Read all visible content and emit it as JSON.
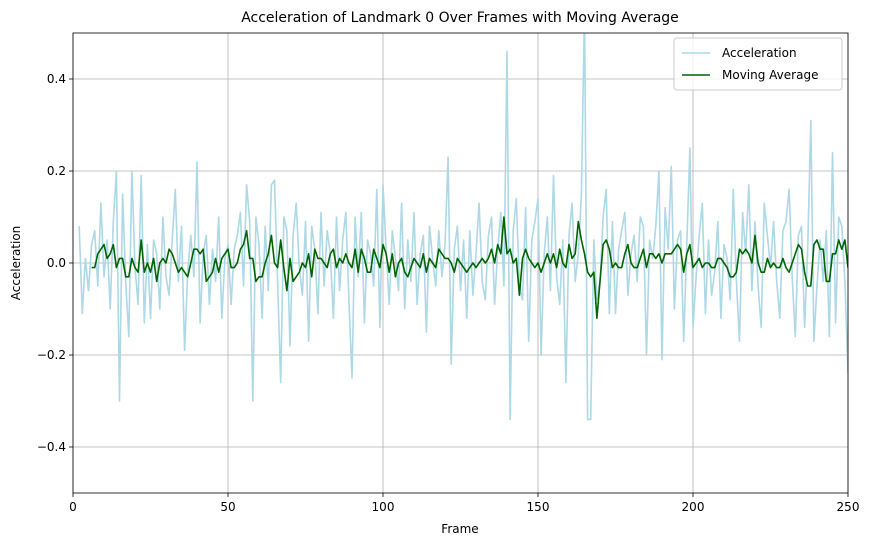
{
  "chart_data": {
    "type": "line",
    "title": "Acceleration of Landmark 0 Over Frames with Moving Average",
    "x_label": "Frame",
    "y_label": "Acceleration",
    "xlim": [
      0,
      250
    ],
    "ylim": [
      -0.5,
      0.5
    ],
    "xticks": [
      0,
      50,
      100,
      150,
      200,
      250
    ],
    "yticks": [
      {
        "value": -0.4,
        "label": "−0.4"
      },
      {
        "value": -0.2,
        "label": "−0.2"
      },
      {
        "value": 0,
        "label": "0.0"
      },
      0.2,
      0.4
    ],
    "grid": true,
    "legend": "upper right",
    "x": [
      2,
      3,
      4,
      5,
      6,
      7,
      8,
      9,
      10,
      11,
      12,
      13,
      14,
      15,
      16,
      17,
      18,
      19,
      20,
      21,
      22,
      23,
      24,
      25,
      26,
      27,
      28,
      29,
      30,
      31,
      32,
      33,
      34,
      35,
      36,
      37,
      38,
      39,
      40,
      41,
      42,
      43,
      44,
      45,
      46,
      47,
      48,
      49,
      50,
      51,
      52,
      53,
      54,
      55,
      56,
      57,
      58,
      59,
      60,
      61,
      62,
      63,
      64,
      65,
      66,
      67,
      68,
      69,
      70,
      71,
      72,
      73,
      74,
      75,
      76,
      77,
      78,
      79,
      80,
      81,
      82,
      83,
      84,
      85,
      86,
      87,
      88,
      89,
      90,
      91,
      92,
      93,
      94,
      95,
      96,
      97,
      98,
      99,
      100,
      101,
      102,
      103,
      104,
      105,
      106,
      107,
      108,
      109,
      110,
      111,
      112,
      113,
      114,
      115,
      116,
      117,
      118,
      119,
      120,
      121,
      122,
      123,
      124,
      125,
      126,
      127,
      128,
      129,
      130,
      131,
      132,
      133,
      134,
      135,
      136,
      137,
      138,
      139,
      140,
      141,
      142,
      143,
      144,
      145,
      146,
      147,
      148,
      149,
      150,
      151,
      152,
      153,
      154,
      155,
      156,
      157,
      158,
      159,
      160,
      161,
      162,
      163,
      164,
      165,
      166,
      167,
      168,
      169,
      170,
      171,
      172,
      173,
      174,
      175,
      176,
      177,
      178,
      179,
      180,
      181,
      182,
      183,
      184,
      185,
      186,
      187,
      188,
      189,
      190,
      191,
      192,
      193,
      194,
      195,
      196,
      197,
      198,
      199,
      200,
      201,
      202,
      203,
      204,
      205,
      206,
      207,
      208,
      209,
      210,
      211,
      212,
      213,
      214,
      215,
      216,
      217,
      218,
      219,
      220,
      221,
      222,
      223,
      224,
      225,
      226,
      227,
      228,
      229,
      230,
      231,
      232,
      233,
      234,
      235,
      236,
      237,
      238,
      239,
      240,
      241,
      242,
      243,
      244,
      245,
      246,
      247,
      248,
      249,
      250
    ],
    "series": [
      {
        "name": "Acceleration",
        "color": "#add8e6",
        "values": [
          0.08,
          -0.11,
          0.01,
          -0.06,
          0.04,
          0.07,
          -0.05,
          0.13,
          -0.03,
          0.05,
          -0.1,
          0.09,
          0.2,
          -0.3,
          0.15,
          -0.04,
          -0.16,
          0.2,
          -0.01,
          -0.09,
          0.19,
          -0.13,
          0.04,
          -0.12,
          0.05,
          0.02,
          -0.1,
          0.1,
          -0.03,
          -0.07,
          0.05,
          0.16,
          -0.04,
          0.08,
          -0.19,
          -0.02,
          0.06,
          -0.03,
          0.22,
          -0.13,
          0.02,
          0.06,
          -0.09,
          0.03,
          -0.04,
          0.1,
          -0.12,
          0.01,
          0.04,
          -0.09,
          0.03,
          0.06,
          0.11,
          -0.05,
          0.17,
          0.09,
          -0.3,
          0.1,
          0.04,
          -0.12,
          0.08,
          -0.06,
          0.17,
          0.18,
          -0.04,
          -0.26,
          0.1,
          0.07,
          -0.18,
          0.06,
          0.13,
          -0.01,
          -0.07,
          0.09,
          -0.17,
          0.08,
          0.03,
          -0.11,
          0.11,
          -0.05,
          0.07,
          0.02,
          -0.12,
          0.1,
          -0.06,
          0.05,
          0.11,
          -0.08,
          -0.25,
          0.1,
          -0.03,
          0.11,
          -0.13,
          0.05,
          0.02,
          -0.05,
          0.16,
          -0.14,
          0.17,
          0.03,
          -0.09,
          0.07,
          0.01,
          -0.06,
          0.13,
          -0.1,
          0.05,
          -0.04,
          0.11,
          -0.09,
          0.02,
          0.06,
          -0.15,
          0.08,
          0.01,
          -0.05,
          0.07,
          -0.03,
          0.04,
          0.23,
          -0.22,
          0.03,
          0.08,
          -0.06,
          0.05,
          -0.12,
          0.07,
          -0.07,
          0.02,
          0.13,
          -0.04,
          -0.08,
          0.06,
          0.1,
          -0.09,
          0.03,
          0.11,
          -0.05,
          0.46,
          -0.34,
          0.07,
          0.14,
          -0.05,
          -0.08,
          0.12,
          -0.17,
          0.05,
          0.09,
          0.14,
          -0.2,
          0.02,
          0.1,
          -0.06,
          0.19,
          -0.03,
          -0.09,
          0.05,
          -0.26,
          0.06,
          0.13,
          -0.04,
          0.02,
          0.15,
          0.55,
          -0.34,
          -0.34,
          0.05,
          -0.08,
          -0.04,
          0.1,
          0.16,
          -0.11,
          0.09,
          -0.11,
          0.03,
          0.07,
          0.11,
          -0.07,
          0.02,
          0.06,
          -0.04,
          0.1,
          0.08,
          -0.2,
          0.05,
          0.01,
          0.08,
          0.2,
          -0.21,
          0.12,
          0.03,
          0.21,
          -0.1,
          0.05,
          0.07,
          -0.17,
          0.04,
          0.25,
          -0.14,
          -0.03,
          0.06,
          0.13,
          -0.11,
          0.05,
          -0.07,
          -0.02,
          0.09,
          -0.12,
          0.04,
          0.01,
          -0.08,
          0.16,
          -0.04,
          -0.17,
          0.11,
          0.02,
          0.17,
          -0.06,
          0.09,
          -0.05,
          -0.14,
          0.13,
          0.06,
          -0.01,
          0.09,
          -0.04,
          -0.12,
          0.07,
          0.09,
          0.16,
          -0.03,
          -0.16,
          0.06,
          0.08,
          -0.14,
          0.03,
          0.31,
          -0.17,
          -0.05,
          0.05,
          -0.04,
          0.07,
          -0.16,
          0.24,
          -0.13,
          0.1,
          0.08,
          -0.04,
          -0.24
        ]
      },
      {
        "name": "Moving Average",
        "color": "#006400",
        "values": [
          null,
          null,
          null,
          null,
          -0.01,
          -0.01,
          0.02,
          0.03,
          0.04,
          0.01,
          0.02,
          0.04,
          -0.01,
          0.01,
          0.01,
          -0.03,
          -0.03,
          0.01,
          -0.01,
          -0.02,
          0.05,
          -0.02,
          0.0,
          -0.02,
          0.01,
          -0.04,
          0.0,
          0.01,
          0.0,
          0.03,
          0.02,
          0.0,
          -0.02,
          -0.01,
          -0.02,
          -0.03,
          0.0,
          0.03,
          0.03,
          0.02,
          0.03,
          -0.04,
          -0.03,
          -0.02,
          0.01,
          -0.02,
          0.01,
          0.02,
          0.03,
          -0.01,
          -0.01,
          0.0,
          0.03,
          0.04,
          0.07,
          0.01,
          0.01,
          -0.04,
          -0.03,
          -0.03,
          0.0,
          0.02,
          0.06,
          0.0,
          -0.01,
          0.05,
          -0.01,
          -0.06,
          0.01,
          -0.04,
          -0.03,
          -0.02,
          0.0,
          -0.01,
          0.02,
          -0.03,
          0.03,
          0.01,
          0.01,
          0.0,
          -0.01,
          0.02,
          0.03,
          -0.01,
          0.01,
          0.0,
          0.02,
          0.0,
          -0.01,
          0.03,
          -0.02,
          0.03,
          0.01,
          -0.02,
          -0.02,
          0.03,
          0.01,
          -0.01,
          0.04,
          0.02,
          -0.02,
          0.02,
          -0.03,
          0.0,
          0.01,
          -0.02,
          -0.03,
          -0.01,
          0.01,
          0.0,
          -0.01,
          0.02,
          -0.02,
          0.01,
          0.0,
          -0.01,
          0.03,
          0.02,
          0.01,
          0.01,
          0.0,
          -0.02,
          0.01,
          0.0,
          -0.01,
          -0.02,
          -0.01,
          0.0,
          -0.01,
          0.0,
          0.01,
          0.0,
          0.01,
          0.03,
          0.0,
          0.04,
          0.02,
          0.1,
          0.02,
          0.03,
          0.0,
          0.01,
          -0.07,
          0.01,
          0.03,
          0.01,
          0.0,
          -0.01,
          0.0,
          -0.02,
          0.0,
          0.02,
          0.0,
          0.02,
          -0.01,
          0.03,
          0.0,
          -0.01,
          0.04,
          0.01,
          0.02,
          0.09,
          0.05,
          0.02,
          -0.02,
          -0.03,
          -0.02,
          -0.12,
          -0.04,
          0.04,
          0.05,
          0.03,
          -0.01,
          0.0,
          -0.01,
          -0.01,
          0.02,
          0.04,
          0.0,
          -0.01,
          -0.01,
          0.01,
          0.03,
          -0.01,
          0.02,
          0.02,
          0.01,
          0.02,
          0.0,
          0.02,
          0.02,
          0.02,
          0.03,
          0.04,
          0.03,
          -0.02,
          0.02,
          0.04,
          -0.01,
          0.0,
          0.01,
          -0.01,
          0.0,
          0.0,
          -0.01,
          -0.01,
          0.01,
          0.01,
          0.0,
          -0.01,
          -0.03,
          -0.03,
          -0.02,
          0.03,
          0.02,
          0.03,
          0.02,
          0.0,
          0.06,
          0.0,
          -0.02,
          -0.02,
          0.01,
          -0.01,
          0.0,
          -0.01,
          -0.01,
          0.01,
          -0.01,
          -0.02,
          0.0,
          0.02,
          0.04,
          0.03,
          -0.02,
          -0.05,
          -0.05,
          0.04,
          0.05,
          0.03,
          0.03,
          -0.04,
          -0.04,
          0.02,
          0.02,
          0.05,
          0.03,
          0.05,
          -0.01
        ]
      }
    ]
  }
}
